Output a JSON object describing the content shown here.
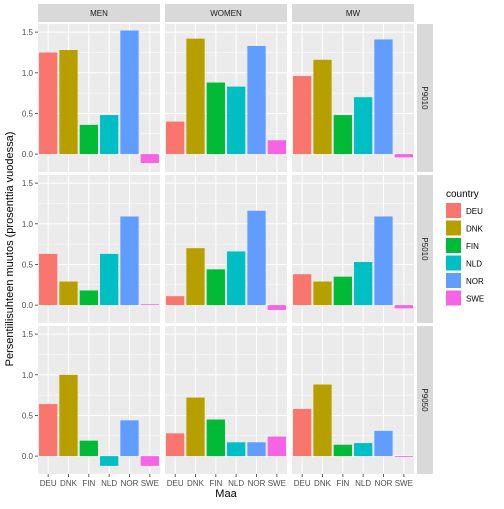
{
  "chart_data": {
    "type": "bar",
    "facet_cols": [
      "MEN",
      "WOMEN",
      "MW"
    ],
    "facet_rows": [
      "P9010",
      "P5010",
      "P9050"
    ],
    "categories": [
      "DEU",
      "DNK",
      "FIN",
      "NLD",
      "NOR",
      "SWE"
    ],
    "xlabel": "Maa",
    "ylabel": "Persentiilisuhteen muutos (prosenttia vuodessa)",
    "ylim": [
      -0.22,
      1.6
    ],
    "yticks": [
      0.0,
      0.5,
      1.0,
      1.5
    ],
    "ytick_labels": [
      "0.0",
      "0.5",
      "1.0",
      "1.5"
    ],
    "grid": true,
    "legend": {
      "title": "country",
      "position": "right",
      "entries": [
        "DEU",
        "DNK",
        "FIN",
        "NLD",
        "NOR",
        "SWE"
      ]
    },
    "colors": {
      "DEU": "#F8766D",
      "DNK": "#B79F00",
      "FIN": "#00BA38",
      "NLD": "#00BFC4",
      "NOR": "#619CFF",
      "SWE": "#F564E3"
    },
    "panel_background": "#EBEBEB",
    "strip_background": "#D9D9D9",
    "values": {
      "P9010": {
        "MEN": [
          1.25,
          1.28,
          0.36,
          0.48,
          1.52,
          -0.11
        ],
        "WOMEN": [
          0.4,
          1.42,
          0.88,
          0.83,
          1.33,
          0.17
        ],
        "MW": [
          0.96,
          1.16,
          0.48,
          0.7,
          1.41,
          -0.04
        ]
      },
      "P5010": {
        "MEN": [
          0.63,
          0.29,
          0.18,
          0.63,
          1.09,
          0.01
        ],
        "WOMEN": [
          0.11,
          0.7,
          0.44,
          0.66,
          1.16,
          -0.06
        ],
        "MW": [
          0.38,
          0.29,
          0.35,
          0.53,
          1.09,
          -0.04
        ]
      },
      "P9050": {
        "MEN": [
          0.64,
          1.0,
          0.19,
          -0.12,
          0.44,
          -0.12
        ],
        "WOMEN": [
          0.28,
          0.72,
          0.45,
          0.17,
          0.17,
          0.24
        ],
        "MW": [
          0.58,
          0.88,
          0.14,
          0.16,
          0.31,
          -0.01
        ]
      }
    }
  }
}
